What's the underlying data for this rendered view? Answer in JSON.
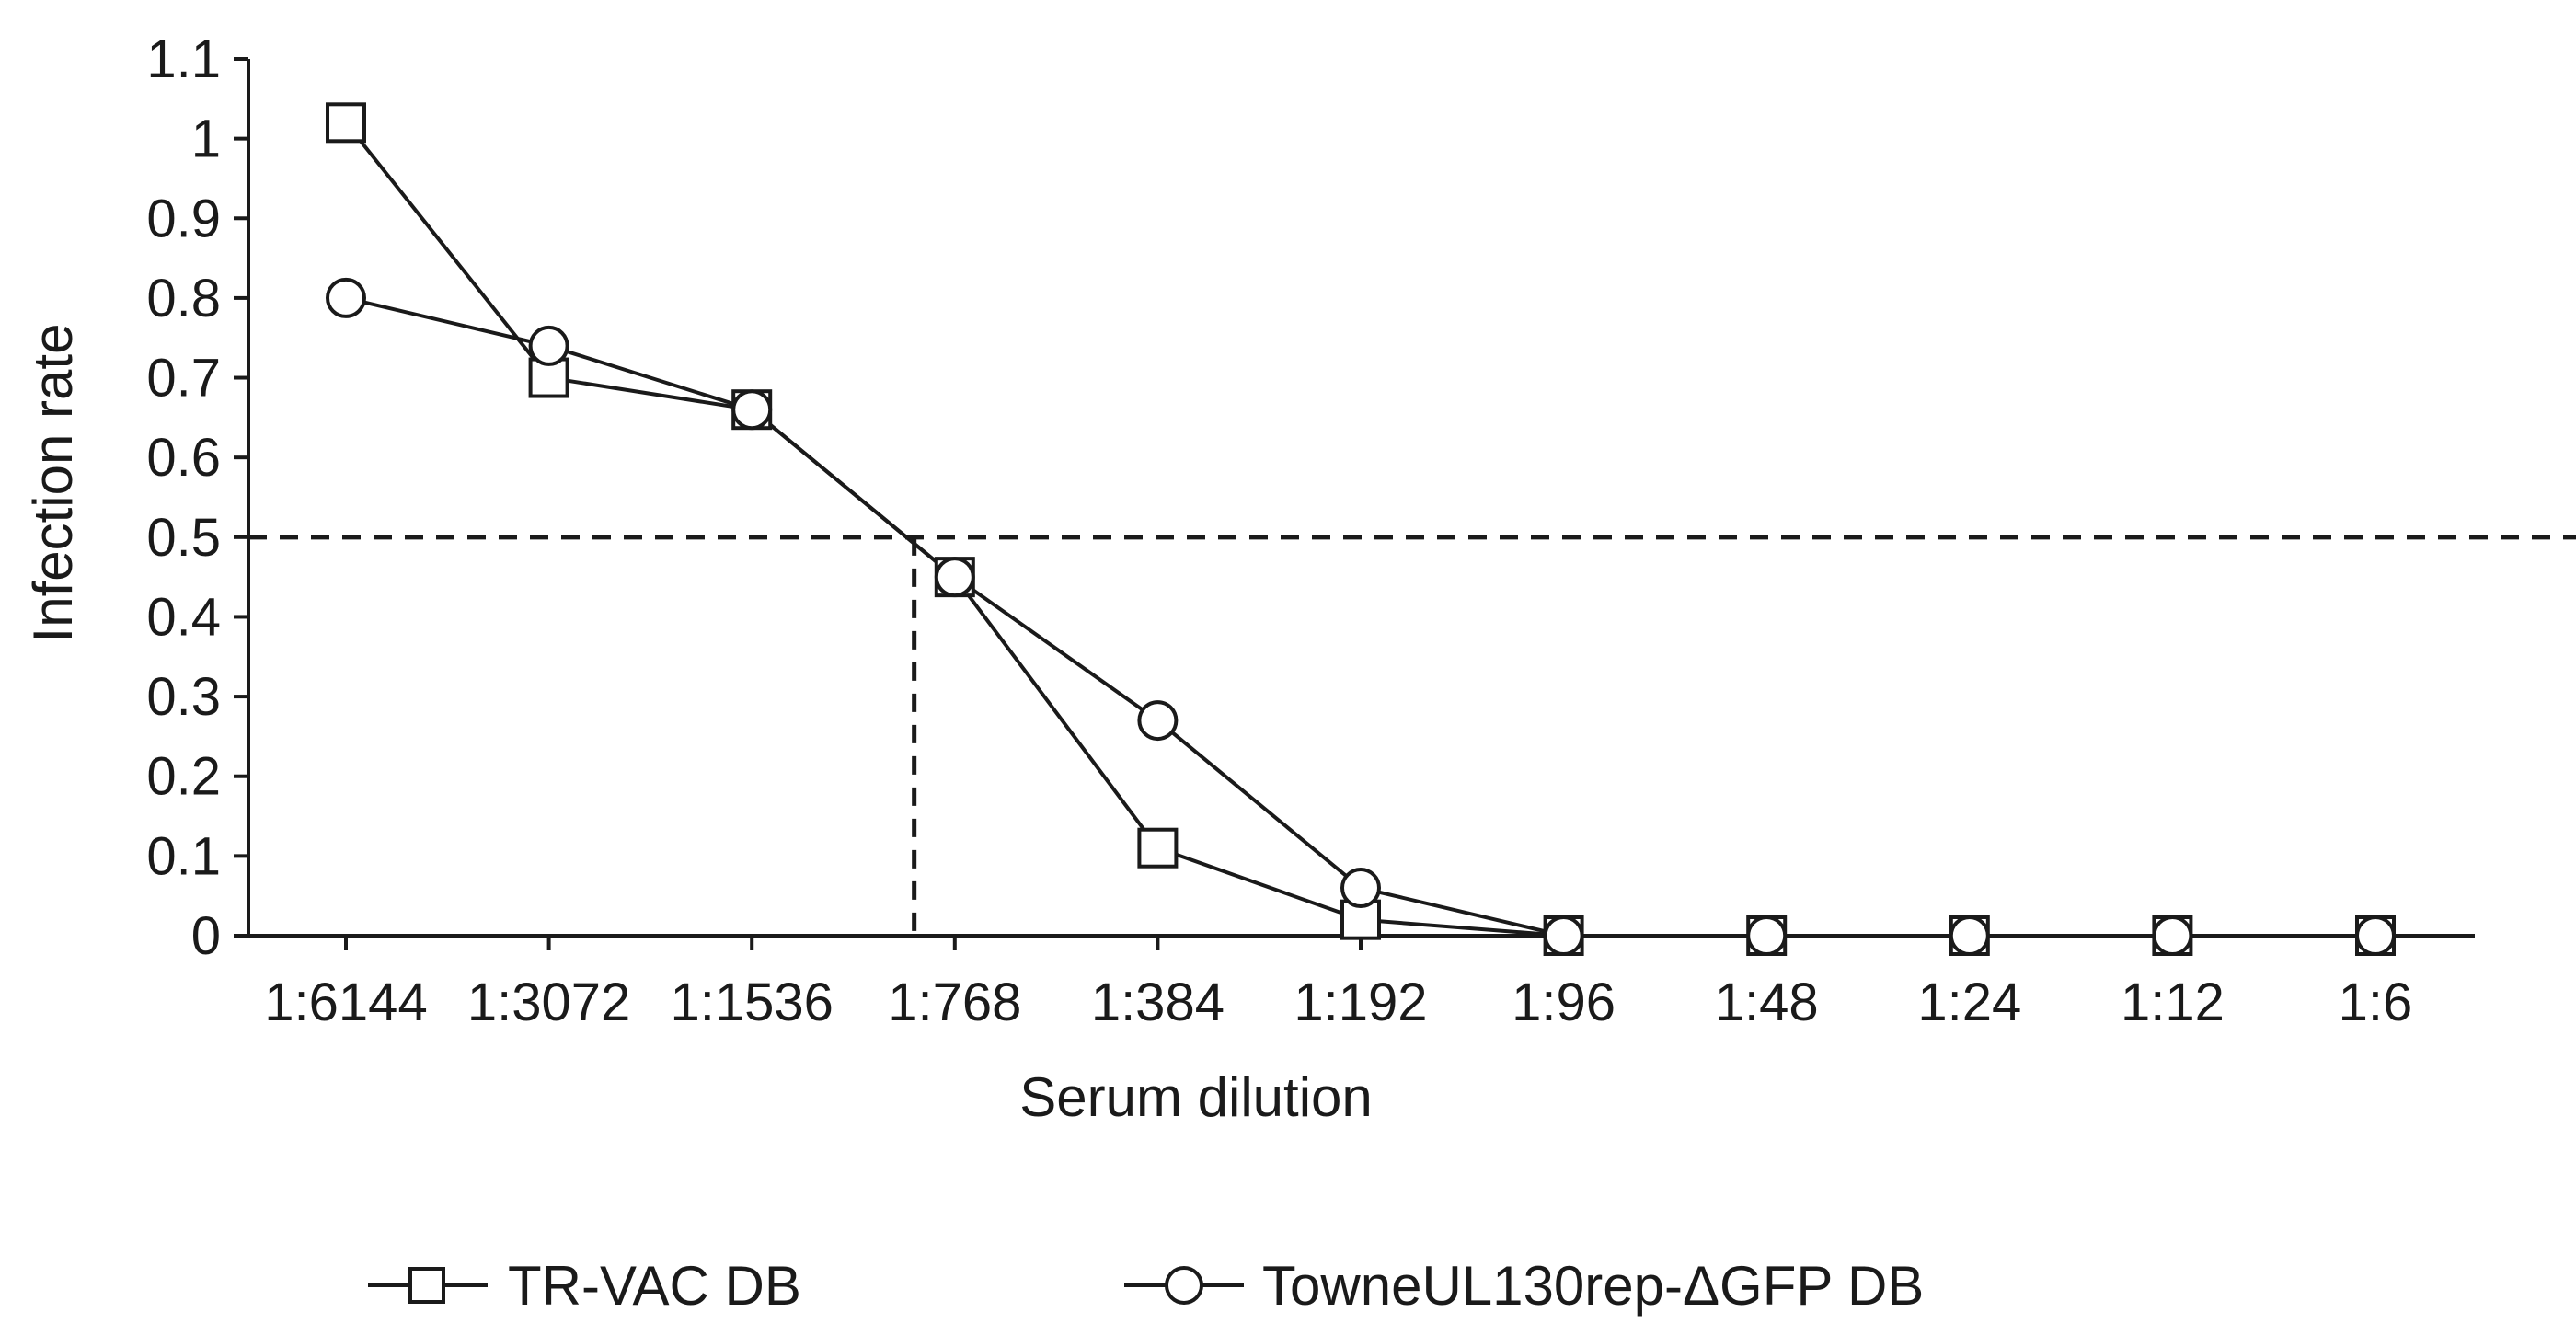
{
  "chart_data": {
    "type": "line",
    "title": "",
    "xlabel": "Serum dilution",
    "ylabel": "Infection rate",
    "categories": [
      "1:6144",
      "1:3072",
      "1:1536",
      "1:768",
      "1:384",
      "1:192",
      "1:96",
      "1:48",
      "1:24",
      "1:12",
      "1:6"
    ],
    "ylim": [
      0,
      1.1
    ],
    "yticks": [
      "0",
      "0.1",
      "0.2",
      "0.3",
      "0.4",
      "0.5",
      "0.6",
      "0.7",
      "0.8",
      "0.9",
      "1",
      "1.1"
    ],
    "grid": false,
    "legend_position": "bottom",
    "series": [
      {
        "name": "TR-VAC DB",
        "marker": "square",
        "values": [
          1.02,
          0.7,
          0.66,
          0.45,
          0.11,
          0.02,
          0.0,
          0.0,
          0.0,
          0.0,
          0.0
        ]
      },
      {
        "name": "TowneUL130rep-ΔGFP DB",
        "marker": "circle",
        "values": [
          0.8,
          0.74,
          0.66,
          0.45,
          0.27,
          0.06,
          0.0,
          0.0,
          0.0,
          0.0,
          0.0
        ]
      }
    ],
    "reference_lines": {
      "horizontal_y": 0.5,
      "vertical_x_category_position": 2.8
    },
    "colors": {
      "line": "#1a1a1a",
      "marker_fill": "#ffffff",
      "background": "#ffffff"
    }
  }
}
